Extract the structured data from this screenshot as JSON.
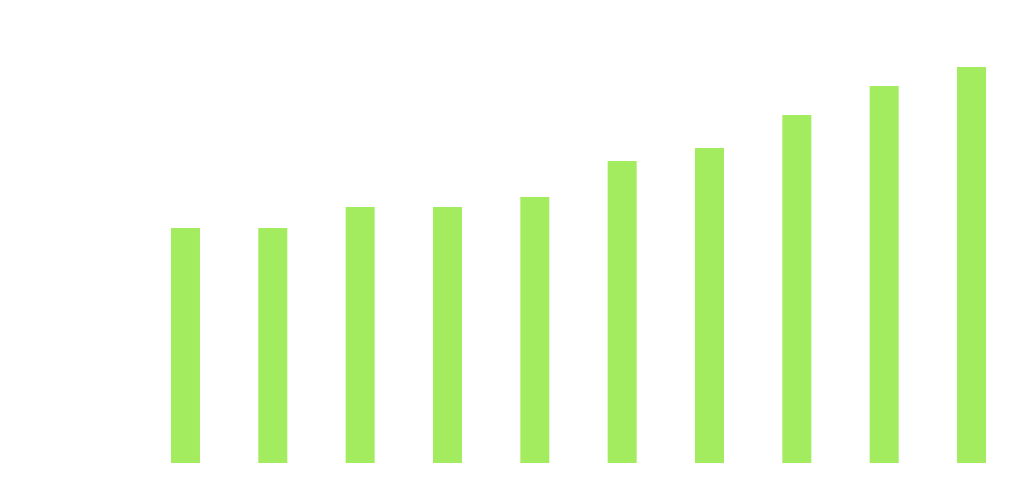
{
  "chart_data": {
    "type": "bar",
    "categories": [
      null,
      null,
      null,
      null,
      null,
      null,
      null,
      null,
      null,
      null
    ],
    "values": [
      235,
      235,
      256,
      256,
      266,
      302,
      315,
      348,
      377,
      396
    ],
    "color": "#a3eb5f",
    "ylim": [
      0,
      463
    ]
  }
}
